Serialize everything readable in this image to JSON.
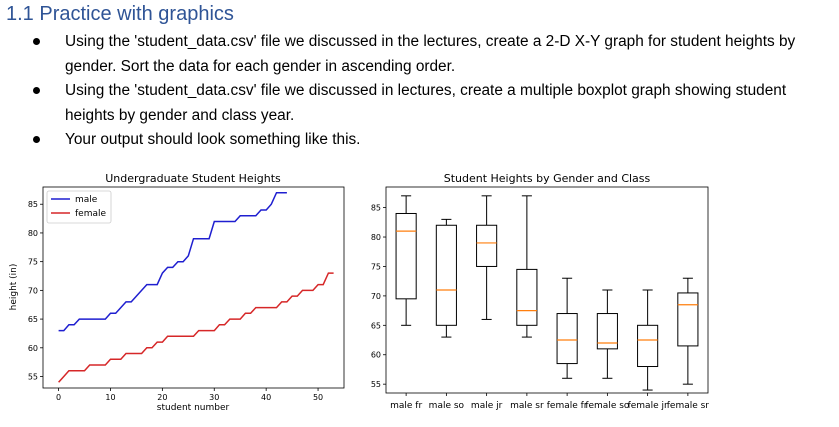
{
  "heading": "1.1 Practice with graphics",
  "bullets": [
    "Using the 'student_data.csv' file we discussed in the lectures, create a 2-D X-Y graph for student heights by gender.  Sort the data for each gender in ascending order.",
    "Using the 'student_data.csv' file we discussed in lectures, create a multiple boxplot graph showing student heights by gender and class year.",
    "Your output should look something like this."
  ],
  "chart_data": [
    {
      "type": "line",
      "title": "Undergraduate Student Heights",
      "xlabel": "student number",
      "ylabel": "height (in)",
      "xlim": [
        -3,
        55
      ],
      "ylim": [
        53,
        88
      ],
      "xticks": [
        0,
        10,
        20,
        30,
        40,
        50
      ],
      "yticks": [
        55,
        60,
        65,
        70,
        75,
        80,
        85
      ],
      "legend": "top-left",
      "series": [
        {
          "name": "male",
          "color": "#1f1fd0",
          "x": [
            0,
            1,
            2,
            3,
            4,
            5,
            6,
            7,
            8,
            9,
            10,
            11,
            12,
            13,
            14,
            15,
            16,
            17,
            18,
            19,
            20,
            21,
            22,
            23,
            24,
            25,
            26,
            27,
            28,
            29,
            30,
            31,
            32,
            33,
            34,
            35,
            36,
            37,
            38,
            39,
            40,
            41,
            42,
            43,
            44
          ],
          "y": [
            63,
            63,
            64,
            64,
            65,
            65,
            65,
            65,
            65,
            65,
            66,
            66,
            67,
            68,
            68,
            69,
            70,
            71,
            71,
            71,
            73,
            74,
            74,
            75,
            75,
            76,
            79,
            79,
            79,
            79,
            82,
            82,
            82,
            82,
            82,
            83,
            83,
            83,
            83,
            84,
            84,
            85,
            87,
            87,
            87
          ]
        },
        {
          "name": "female",
          "color": "#d62728",
          "x": [
            0,
            1,
            2,
            3,
            4,
            5,
            6,
            7,
            8,
            9,
            10,
            11,
            12,
            13,
            14,
            15,
            16,
            17,
            18,
            19,
            20,
            21,
            22,
            23,
            24,
            25,
            26,
            27,
            28,
            29,
            30,
            31,
            32,
            33,
            34,
            35,
            36,
            37,
            38,
            39,
            40,
            41,
            42,
            43,
            44,
            45,
            46,
            47,
            48,
            49,
            50,
            51,
            52,
            53
          ],
          "y": [
            54,
            55,
            56,
            56,
            56,
            56,
            57,
            57,
            57,
            57,
            58,
            58,
            58,
            59,
            59,
            59,
            59,
            60,
            60,
            61,
            61,
            62,
            62,
            62,
            62,
            62,
            62,
            63,
            63,
            63,
            63,
            64,
            64,
            65,
            65,
            65,
            66,
            66,
            67,
            67,
            67,
            67,
            67,
            68,
            68,
            69,
            69,
            70,
            70,
            70,
            71,
            71,
            73,
            73
          ]
        }
      ]
    },
    {
      "type": "boxplot",
      "title": "Student Heights by Gender and Class",
      "ylim": [
        53.5,
        88.5
      ],
      "yticks": [
        55,
        60,
        65,
        70,
        75,
        80,
        85
      ],
      "categories": [
        "male fr",
        "male so",
        "male jr",
        "male sr",
        "female fr",
        "female so",
        "female jr",
        "female sr"
      ],
      "boxes": [
        {
          "whislo": 65,
          "q1": 69.5,
          "med": 81,
          "q3": 84,
          "whishi": 87
        },
        {
          "whislo": 63,
          "q1": 65,
          "med": 71,
          "q3": 82,
          "whishi": 83
        },
        {
          "whislo": 66,
          "q1": 75,
          "med": 79,
          "q3": 82,
          "whishi": 87
        },
        {
          "whislo": 63,
          "q1": 65,
          "med": 67.5,
          "q3": 74.5,
          "whishi": 87
        },
        {
          "whislo": 56,
          "q1": 58.5,
          "med": 62.5,
          "q3": 67,
          "whishi": 73
        },
        {
          "whislo": 56,
          "q1": 61,
          "med": 62,
          "q3": 67,
          "whishi": 71
        },
        {
          "whislo": 54,
          "q1": 58,
          "med": 62.5,
          "q3": 65,
          "whishi": 71
        },
        {
          "whislo": 55,
          "q1": 61.5,
          "med": 68.5,
          "q3": 70.5,
          "whishi": 73
        }
      ],
      "box_color": "#000000",
      "median_color": "#ff7f0e"
    }
  ]
}
